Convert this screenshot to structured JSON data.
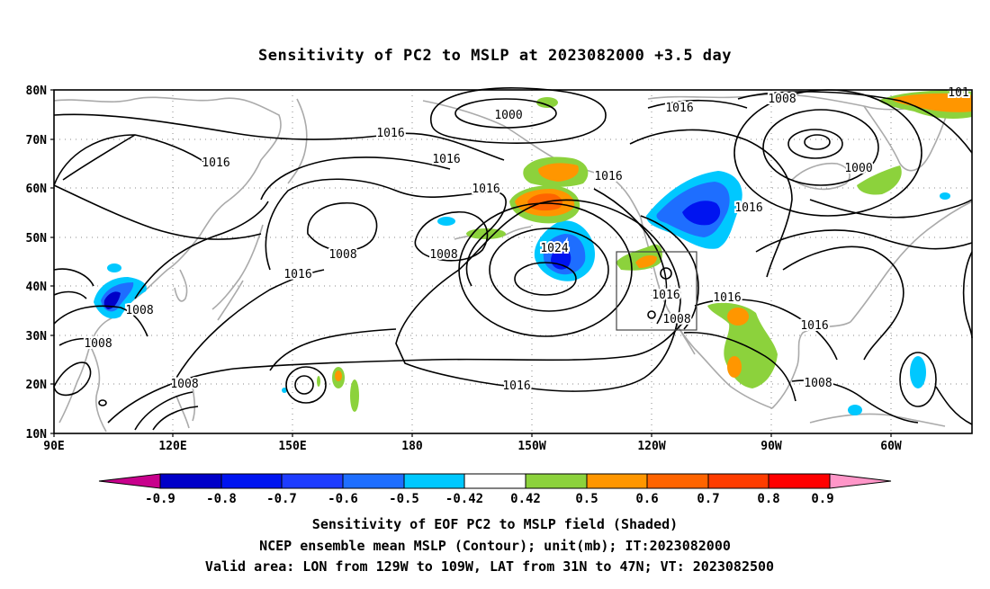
{
  "title": "Sensitivity of PC2 to MSLP at 2023082000 +3.5 day",
  "lat_ticks": [
    "80N",
    "70N",
    "60N",
    "50N",
    "40N",
    "30N",
    "20N",
    "10N"
  ],
  "lon_ticks": [
    "90E",
    "120E",
    "150E",
    "180",
    "150W",
    "120W",
    "90W",
    "60W"
  ],
  "contour_labels": [
    {
      "t": "1000",
      "k": "low1"
    },
    {
      "t": "1016",
      "k": "a"
    },
    {
      "t": "1008",
      "k": "b"
    },
    {
      "t": "1016",
      "k": "c"
    },
    {
      "t": "1016",
      "k": "d"
    },
    {
      "t": "1016",
      "k": "e"
    },
    {
      "t": "1000",
      "k": "low2"
    },
    {
      "t": "101",
      "k": "f"
    },
    {
      "t": "1016",
      "k": "g"
    },
    {
      "t": "1016",
      "k": "h"
    },
    {
      "t": "1016",
      "k": "i"
    },
    {
      "t": "1008",
      "k": "j"
    },
    {
      "t": "1008",
      "k": "k"
    },
    {
      "t": "1024",
      "k": "high"
    },
    {
      "t": "1016",
      "k": "l"
    },
    {
      "t": "1008",
      "k": "m"
    },
    {
      "t": "1008",
      "k": "n"
    },
    {
      "t": "1016",
      "k": "o"
    },
    {
      "t": "1016",
      "k": "p"
    },
    {
      "t": "1008",
      "k": "q"
    },
    {
      "t": "1016",
      "k": "r"
    },
    {
      "t": "1008",
      "k": "s"
    },
    {
      "t": "1008",
      "k": "t"
    },
    {
      "t": "1016",
      "k": "u"
    }
  ],
  "colorbar": {
    "labels": [
      "-0.9",
      "-0.8",
      "-0.7",
      "-0.6",
      "-0.5",
      "-0.42",
      "0.42",
      "0.5",
      "0.6",
      "0.7",
      "0.8",
      "0.9"
    ],
    "colors": [
      "#c8008c",
      "#0000c8",
      "#0014f0",
      "#1e3cff",
      "#1e6eff",
      "#00c8ff",
      "#ffffff",
      "#8cd23c",
      "#ff9600",
      "#ff6400",
      "#ff3c00",
      "#ff0000",
      "#ff96c8"
    ]
  },
  "captions": [
    "Sensitivity of EOF PC2 to MSLP field (Shaded)",
    "NCEP ensemble mean MSLP (Contour); unit(mb); IT:2023082000",
    "Valid area: LON from 129W to 109W, LAT from 31N to 47N; VT: 2023082500"
  ],
  "colors": {
    "contour": "#000000",
    "coast": "#aaaaaa",
    "grid": "#888888"
  }
}
